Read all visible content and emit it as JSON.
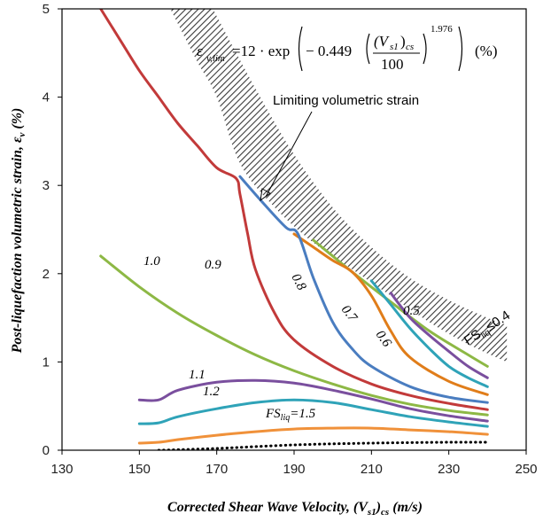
{
  "chart_data": {
    "type": "line",
    "xlabel": "Corrected Shear Wave Velocity, (V",
    "xlabel_sub": "s1",
    "xlabel_tail": ")",
    "xlabel_sub2": "cs",
    "xlabel_units": " (m/s)",
    "ylabel": "Post-liquefaction volumetric strain, ε",
    "ylabel_sub": "v",
    "ylabel_units": " (%)",
    "xlim": [
      130,
      250
    ],
    "ylim": [
      0,
      5
    ],
    "xticks": [
      "130",
      "150",
      "170",
      "190",
      "210",
      "230",
      "250"
    ],
    "yticks": [
      "0",
      "1",
      "2",
      "3",
      "4",
      "5"
    ],
    "grid": false,
    "formula": {
      "lhs": "ε",
      "lhs_sub": "v,lim",
      "eq": "=12 · exp",
      "coef": "− 0.449",
      "num": "(V",
      "num_sub": "s1",
      "num_tail": ")",
      "num_sub2": "cs",
      "den": "100",
      "exponent": "1.976",
      "units": "(%)"
    },
    "annotation": "Limiting volumetric strain",
    "limit_band": {
      "upper": [
        [
          169,
          5.0
        ],
        [
          180,
          4.1
        ],
        [
          190,
          3.35
        ],
        [
          200,
          2.75
        ],
        [
          210,
          2.3
        ],
        [
          220,
          1.95
        ],
        [
          230,
          1.7
        ],
        [
          240,
          1.5
        ],
        [
          245,
          1.42
        ]
      ],
      "lower": [
        [
          158,
          5.0
        ],
        [
          165,
          4.4
        ],
        [
          170,
          4.0
        ],
        [
          176,
          3.25
        ],
        [
          185,
          2.75
        ],
        [
          195,
          2.35
        ],
        [
          205,
          2.05
        ],
        [
          215,
          1.75
        ],
        [
          225,
          1.45
        ],
        [
          235,
          1.2
        ],
        [
          245,
          1.0
        ]
      ]
    },
    "series": [
      {
        "label": "FS",
        "label_sub": "liq",
        "label_tail": "≤0.4",
        "color": "#8DB845",
        "x": [
          195,
          205,
          215,
          225,
          235,
          240
        ],
        "y": [
          2.38,
          2.02,
          1.68,
          1.35,
          1.08,
          0.95
        ]
      },
      {
        "label": "0.5",
        "color": "#7A4F9E",
        "x": [
          215,
          220,
          225,
          230,
          235,
          240
        ],
        "y": [
          1.78,
          1.5,
          1.3,
          1.12,
          0.95,
          0.82
        ]
      },
      {
        "label": "0.6",
        "color": "#2FA3B8",
        "x": [
          210,
          215,
          220,
          225,
          230,
          235,
          240
        ],
        "y": [
          1.92,
          1.65,
          1.38,
          1.15,
          0.95,
          0.82,
          0.72
        ]
      },
      {
        "label": "0.7",
        "color": "#E07D1A",
        "x": [
          190,
          195,
          200,
          205,
          210,
          215,
          220,
          230,
          240
        ],
        "y": [
          2.45,
          2.3,
          2.15,
          2.02,
          1.75,
          1.35,
          1.05,
          0.78,
          0.63
        ]
      },
      {
        "label": "0.8",
        "color": "#4A7DC0",
        "x": [
          176,
          182,
          188,
          191,
          195,
          200,
          205,
          210,
          220,
          230,
          240
        ],
        "y": [
          3.1,
          2.8,
          2.52,
          2.45,
          1.95,
          1.45,
          1.15,
          0.95,
          0.72,
          0.6,
          0.54
        ]
      },
      {
        "label": "0.9",
        "color": "#C23A3A",
        "x": [
          140,
          145,
          150,
          155,
          160,
          165,
          170,
          175,
          176,
          178,
          180,
          185,
          190,
          200,
          210,
          220,
          230,
          240
        ],
        "y": [
          5.0,
          4.65,
          4.3,
          4.0,
          3.7,
          3.45,
          3.2,
          3.08,
          2.9,
          2.45,
          2.05,
          1.55,
          1.25,
          0.95,
          0.75,
          0.62,
          0.53,
          0.46
        ]
      },
      {
        "label": "1.0",
        "color": "#8DB845",
        "x": [
          140,
          150,
          160,
          170,
          180,
          190,
          200,
          210,
          220,
          230,
          240
        ],
        "y": [
          2.2,
          1.85,
          1.55,
          1.3,
          1.08,
          0.9,
          0.75,
          0.62,
          0.52,
          0.45,
          0.4
        ]
      },
      {
        "label": "1.1",
        "color": "#7A4F9E",
        "x": [
          150,
          155,
          160,
          170,
          180,
          190,
          200,
          210,
          220,
          230,
          240
        ],
        "y": [
          0.57,
          0.57,
          0.68,
          0.77,
          0.79,
          0.76,
          0.68,
          0.58,
          0.47,
          0.39,
          0.33
        ]
      },
      {
        "label": "1.2",
        "color": "#2FA3B8",
        "x": [
          150,
          155,
          160,
          170,
          180,
          190,
          200,
          210,
          220,
          230,
          240
        ],
        "y": [
          0.3,
          0.31,
          0.38,
          0.47,
          0.54,
          0.57,
          0.54,
          0.46,
          0.38,
          0.32,
          0.27
        ]
      },
      {
        "label": "FS",
        "label_sub": "liq",
        "label_tail": "=1.5",
        "color": "#F0913A",
        "x": [
          150,
          155,
          160,
          170,
          180,
          190,
          200,
          210,
          220,
          230,
          240
        ],
        "y": [
          0.08,
          0.09,
          0.12,
          0.17,
          0.21,
          0.24,
          0.25,
          0.25,
          0.23,
          0.21,
          0.18
        ]
      },
      {
        "label": "",
        "color": "#000000",
        "dotted": true,
        "x": [
          155,
          170,
          190,
          210,
          230,
          240
        ],
        "y": [
          0.0,
          0.02,
          0.06,
          0.08,
          0.09,
          0.09
        ]
      }
    ]
  }
}
